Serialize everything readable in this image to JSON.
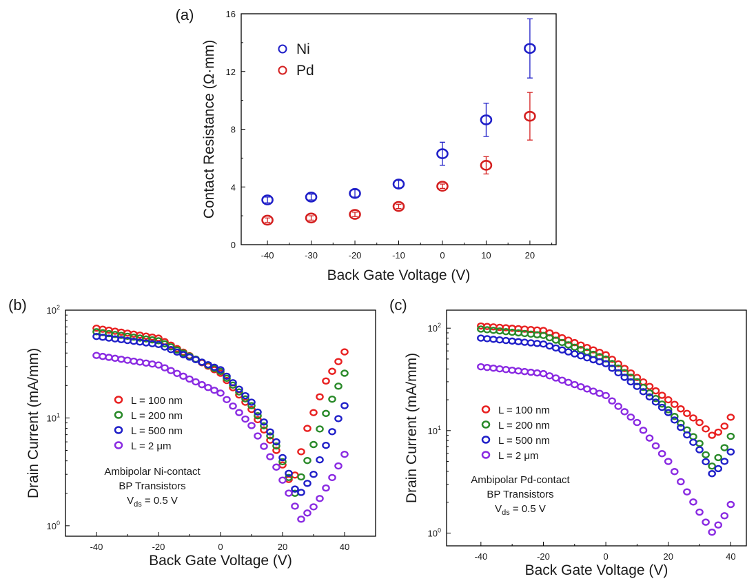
{
  "chart_data": [
    {
      "type": "scatter",
      "panel_label": "(a)",
      "xlabel": "Back Gate Voltage (V)",
      "ylabel": "Contact Resistance (Ω·mm)",
      "xlim": [
        -46,
        26
      ],
      "ylim": [
        0,
        16
      ],
      "xticks": [
        "-40",
        "-30",
        "-20",
        "-10",
        "0",
        "10",
        "20"
      ],
      "yticks": [
        "0",
        "4",
        "8",
        "12",
        "16"
      ],
      "legend_position": "top-left",
      "series": [
        {
          "name": "Ni",
          "color": "#1f1fc8",
          "x": [
            -40,
            -30,
            -20,
            -10,
            0,
            10,
            20
          ],
          "y": [
            3.1,
            3.3,
            3.55,
            4.2,
            6.3,
            8.65,
            13.6
          ],
          "err": [
            0.2,
            0.2,
            0.25,
            0.25,
            0.8,
            1.15,
            2.05
          ]
        },
        {
          "name": "Pd",
          "color": "#d42020",
          "x": [
            -40,
            -30,
            -20,
            -10,
            0,
            10,
            20
          ],
          "y": [
            1.7,
            1.85,
            2.1,
            2.65,
            4.05,
            5.5,
            8.9
          ],
          "err": [
            0.15,
            0.15,
            0.15,
            0.15,
            0.15,
            0.6,
            1.65
          ]
        }
      ]
    },
    {
      "type": "scatter",
      "panel_label": "(b)",
      "xlabel": "Back Gate Voltage (V)",
      "ylabel": "Drain Current (mA/mm)",
      "xlim": [
        -50,
        50
      ],
      "ylim": [
        0.8,
        100
      ],
      "yscale": "log",
      "xticks": [
        "-40",
        "-20",
        "0",
        "20",
        "40"
      ],
      "yticks": [
        1,
        10,
        100
      ],
      "legend_position": "center-left",
      "annotation": [
        "Ambipolar Ni-contact",
        "BP Transistors",
        "V",
        "ds",
        " = 0.5 V"
      ],
      "series": [
        {
          "name": "L = 100 nm",
          "color": "#e82020",
          "x": [
            -40,
            -20,
            0,
            10,
            18,
            23,
            28,
            34,
            40
          ],
          "y": [
            68,
            55,
            26,
            12,
            5.0,
            2.3,
            8.0,
            22,
            41
          ]
        },
        {
          "name": "L = 200 nm",
          "color": "#2a8a2a",
          "x": [
            -40,
            -20,
            0,
            10,
            18,
            24,
            29,
            35,
            40
          ],
          "y": [
            63,
            52,
            27,
            13,
            5.5,
            2.0,
            4.8,
            13,
            26
          ]
        },
        {
          "name": "L = 500 nm",
          "color": "#1f1fc8",
          "x": [
            -40,
            -20,
            0,
            10,
            18,
            25,
            30,
            35,
            40
          ],
          "y": [
            57,
            48,
            28,
            14,
            6.0,
            1.85,
            3.0,
            6.5,
            13
          ]
        },
        {
          "name": "L = 2 μm",
          "color": "#8a2be2",
          "x": [
            -40,
            -20,
            0,
            10,
            18,
            26,
            31,
            36,
            40
          ],
          "y": [
            38,
            31,
            17,
            8.5,
            3.5,
            1.15,
            1.6,
            2.8,
            4.6
          ]
        }
      ]
    },
    {
      "type": "scatter",
      "panel_label": "(c)",
      "xlabel": "Back Gate Voltage (V)",
      "ylabel": "Drain Current (mA/mm)",
      "xlim": [
        -51,
        45
      ],
      "ylim": [
        0.75,
        150
      ],
      "yscale": "log",
      "xticks": [
        "-40",
        "-20",
        "0",
        "20",
        "40"
      ],
      "yticks": [
        1,
        10,
        100
      ],
      "legend_position": "center-left",
      "annotation": [
        "Ambipolar Pd-contact",
        "BP Transistors",
        "V",
        "ds",
        " = 0.5 V"
      ],
      "series": [
        {
          "name": "L = 100 nm",
          "color": "#e82020",
          "x": [
            -40,
            -20,
            0,
            10,
            20,
            30,
            34,
            37,
            40
          ],
          "y": [
            105,
            95,
            55,
            33,
            20,
            12,
            9.0,
            10,
            13.5
          ]
        },
        {
          "name": "L = 200 nm",
          "color": "#2a8a2a",
          "x": [
            -40,
            -20,
            0,
            10,
            20,
            30,
            34,
            37,
            40
          ],
          "y": [
            98,
            85,
            50,
            30,
            16,
            7.5,
            4.5,
            6.0,
            8.8
          ]
        },
        {
          "name": "L = 500 nm",
          "color": "#1f1fc8",
          "x": [
            -40,
            -20,
            0,
            10,
            20,
            30,
            34,
            37,
            40
          ],
          "y": [
            80,
            70,
            45,
            27,
            15,
            6.5,
            3.8,
            4.5,
            6.2
          ]
        },
        {
          "name": "L = 2 μm",
          "color": "#8a2be2",
          "x": [
            -40,
            -20,
            0,
            10,
            20,
            30,
            34,
            37,
            40
          ],
          "y": [
            42,
            36,
            22,
            12,
            5.0,
            1.6,
            1.02,
            1.3,
            1.9
          ]
        }
      ]
    }
  ]
}
